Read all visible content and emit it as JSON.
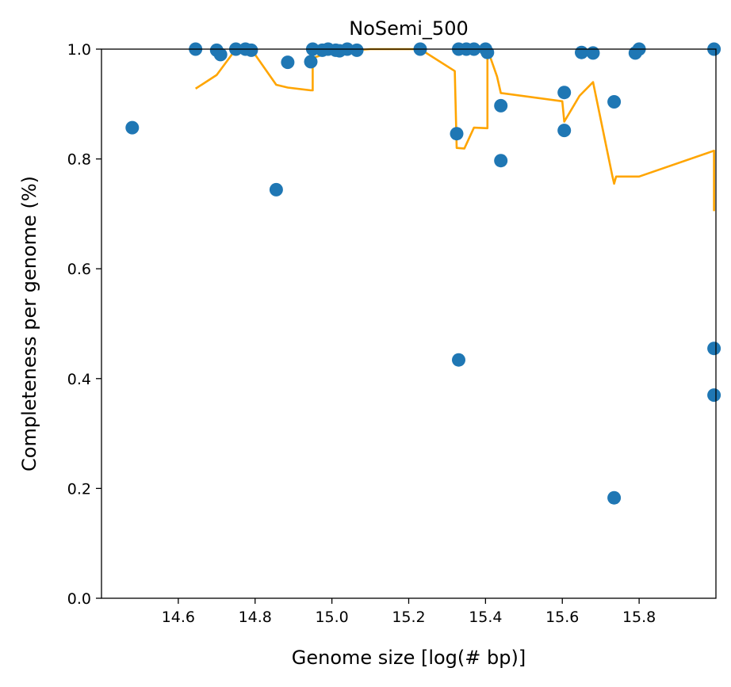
{
  "chart_data": {
    "type": "scatter",
    "title": "NoSemi_500",
    "xlabel": "Genome size [log(# bp)]",
    "ylabel": "Completeness per genome (%)",
    "xlim": [
      14.4,
      16.0
    ],
    "ylim": [
      0.0,
      1.0
    ],
    "x_ticks": [
      14.6,
      14.8,
      15.0,
      15.2,
      15.4,
      15.6,
      15.8
    ],
    "x_tick_labels": [
      "14.6",
      "14.8",
      "15.0",
      "15.2",
      "15.4",
      "15.6",
      "15.8"
    ],
    "y_ticks": [
      0.0,
      0.2,
      0.4,
      0.6,
      0.8,
      1.0
    ],
    "y_tick_labels": [
      "0.0",
      "0.2",
      "0.4",
      "0.6",
      "0.8",
      "1.0"
    ],
    "grid": false,
    "series": [
      {
        "kind": "scatter",
        "color": "#1f77b4",
        "points": [
          [
            14.48,
            0.857
          ],
          [
            14.645,
            1.0
          ],
          [
            14.7,
            0.998
          ],
          [
            14.71,
            0.99
          ],
          [
            14.75,
            1.0
          ],
          [
            14.775,
            1.0
          ],
          [
            14.79,
            0.998
          ],
          [
            14.855,
            0.744
          ],
          [
            14.885,
            0.976
          ],
          [
            14.945,
            0.977
          ],
          [
            14.95,
            1.0
          ],
          [
            14.975,
            0.998
          ],
          [
            14.99,
            1.0
          ],
          [
            15.01,
            0.998
          ],
          [
            15.02,
            0.997
          ],
          [
            15.04,
            1.0
          ],
          [
            15.065,
            0.998
          ],
          [
            15.23,
            1.0
          ],
          [
            15.325,
            0.846
          ],
          [
            15.33,
            1.0
          ],
          [
            15.33,
            0.434
          ],
          [
            15.35,
            1.0
          ],
          [
            15.37,
            1.0
          ],
          [
            15.4,
            1.0
          ],
          [
            15.405,
            0.994
          ],
          [
            15.44,
            0.897
          ],
          [
            15.44,
            0.797
          ],
          [
            15.605,
            0.921
          ],
          [
            15.605,
            0.852
          ],
          [
            15.65,
            0.994
          ],
          [
            15.68,
            0.993
          ],
          [
            15.735,
            0.904
          ],
          [
            15.735,
            0.183
          ],
          [
            15.79,
            0.993
          ],
          [
            15.8,
            1.0
          ],
          [
            15.995,
            1.0
          ],
          [
            15.995,
            0.455
          ],
          [
            15.995,
            0.37
          ]
        ]
      },
      {
        "kind": "line",
        "color": "#ffa500",
        "points": [
          [
            14.645,
            0.928
          ],
          [
            14.7,
            0.953
          ],
          [
            14.75,
            1.0
          ],
          [
            14.79,
            1.0
          ],
          [
            14.855,
            0.935
          ],
          [
            14.885,
            0.93
          ],
          [
            14.945,
            0.925
          ],
          [
            14.95,
            0.925
          ],
          [
            14.95,
            0.984
          ],
          [
            15.0,
            0.995
          ],
          [
            15.1,
            1.0
          ],
          [
            15.23,
            1.0
          ],
          [
            15.32,
            0.96
          ],
          [
            15.325,
            0.82
          ],
          [
            15.345,
            0.819
          ],
          [
            15.37,
            0.857
          ],
          [
            15.405,
            0.856
          ],
          [
            15.405,
            1.0
          ],
          [
            15.43,
            0.95
          ],
          [
            15.44,
            0.92
          ],
          [
            15.6,
            0.905
          ],
          [
            15.605,
            0.868
          ],
          [
            15.645,
            0.915
          ],
          [
            15.68,
            0.94
          ],
          [
            15.73,
            0.77
          ],
          [
            15.735,
            0.755
          ],
          [
            15.74,
            0.768
          ],
          [
            15.8,
            0.768
          ],
          [
            15.995,
            0.815
          ],
          [
            15.995,
            0.705
          ]
        ]
      }
    ]
  }
}
